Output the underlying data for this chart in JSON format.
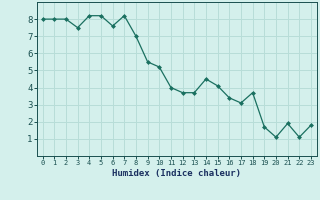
{
  "x": [
    0,
    1,
    2,
    3,
    4,
    5,
    6,
    7,
    8,
    9,
    10,
    11,
    12,
    13,
    14,
    15,
    16,
    17,
    18,
    19,
    20,
    21,
    22,
    23
  ],
  "y": [
    8.0,
    8.0,
    8.0,
    7.5,
    8.2,
    8.2,
    7.6,
    8.2,
    7.0,
    5.5,
    5.2,
    4.0,
    3.7,
    3.7,
    4.5,
    4.1,
    3.4,
    3.1,
    3.7,
    1.7,
    1.1,
    1.9,
    1.1,
    1.8
  ],
  "xlabel": "Humidex (Indice chaleur)",
  "line_color": "#1a7060",
  "marker_color": "#1a7060",
  "bg_color": "#d4f0ec",
  "grid_color": "#b8ddd8",
  "tick_color": "#1a5050",
  "xlabel_color": "#1a3060",
  "ylim": [
    0,
    9
  ],
  "xlim": [
    -0.5,
    23.5
  ],
  "yticks": [
    1,
    2,
    3,
    4,
    5,
    6,
    7,
    8
  ],
  "xticks": [
    0,
    1,
    2,
    3,
    4,
    5,
    6,
    7,
    8,
    9,
    10,
    11,
    12,
    13,
    14,
    15,
    16,
    17,
    18,
    19,
    20,
    21,
    22,
    23
  ]
}
